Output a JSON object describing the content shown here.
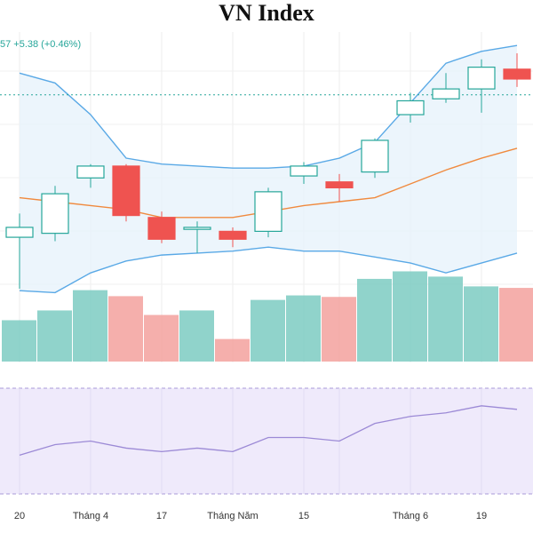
{
  "title": "VN Index",
  "change_readout": "57  +5.38 (+0.46%)",
  "colors": {
    "up": "#26a69a",
    "down": "#ef5350",
    "band": "#5aa9e6",
    "band_fill": "#e7f2fb",
    "ma": "#f08a3e",
    "osc_line": "#9c8ad6",
    "osc_fill": "#efeafb",
    "dotted_ref": "#26a69a"
  },
  "chart_data": {
    "type": "candlestick",
    "title": "VN Index",
    "x_tick_labels": [
      "20",
      "Tháng 4",
      "17",
      "Tháng Năm",
      "15",
      "Tháng 6",
      "19"
    ],
    "candles": [
      {
        "open": 1150,
        "high": 1162,
        "low": 1124,
        "close": 1155
      },
      {
        "open": 1152,
        "high": 1176,
        "low": 1148,
        "close": 1172
      },
      {
        "open": 1180,
        "high": 1187,
        "low": 1175,
        "close": 1186
      },
      {
        "open": 1186,
        "high": 1187,
        "low": 1158,
        "close": 1161
      },
      {
        "open": 1160,
        "high": 1163,
        "low": 1147,
        "close": 1149
      },
      {
        "open": 1154,
        "high": 1158,
        "low": 1142,
        "close": 1155
      },
      {
        "open": 1153,
        "high": 1155,
        "low": 1145,
        "close": 1149
      },
      {
        "open": 1153,
        "high": 1175,
        "low": 1150,
        "close": 1173
      },
      {
        "open": 1181,
        "high": 1188,
        "low": 1177,
        "close": 1186
      },
      {
        "open": 1178,
        "high": 1182,
        "low": 1168,
        "close": 1175
      },
      {
        "open": 1183,
        "high": 1200,
        "low": 1180,
        "close": 1199
      },
      {
        "open": 1212,
        "high": 1223,
        "low": 1208,
        "close": 1219
      },
      {
        "open": 1220,
        "high": 1233,
        "low": 1218,
        "close": 1225
      },
      {
        "open": 1225,
        "high": 1240,
        "low": 1213,
        "close": 1236
      },
      {
        "open": 1235,
        "high": 1243,
        "low": 1226,
        "close": 1230
      }
    ],
    "bollinger_upper": [
      1233,
      1228,
      1212,
      1190,
      1187,
      1186,
      1185,
      1185,
      1186,
      1190,
      1198,
      1218,
      1238,
      1244,
      1247
    ],
    "bollinger_lower": [
      1123,
      1122,
      1132,
      1138,
      1141,
      1142,
      1143,
      1145,
      1143,
      1143,
      1140,
      1137,
      1132,
      1137,
      1142
    ],
    "moving_average": [
      1170,
      1168,
      1166,
      1164,
      1160,
      1160,
      1160,
      1163,
      1166,
      1168,
      1170,
      1177,
      1184,
      1190,
      1195
    ],
    "volume": [
      55,
      68,
      95,
      87,
      62,
      68,
      30,
      82,
      88,
      86,
      110,
      120,
      113,
      100,
      98
    ],
    "oscillator": [
      47,
      50,
      51,
      49,
      48,
      49,
      48,
      52,
      52,
      51,
      56,
      58,
      59,
      61,
      60
    ],
    "dotted_reference": 1222,
    "price_range": [
      1115,
      1252
    ],
    "volume_max": 130,
    "oscillator_range": [
      36,
      66
    ]
  }
}
